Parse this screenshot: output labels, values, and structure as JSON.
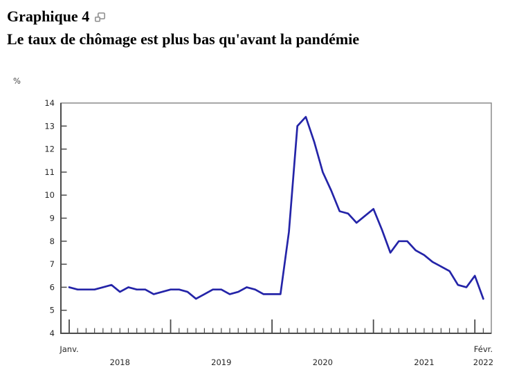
{
  "header": {
    "chart_label": "Graphique 4",
    "title": "Le taux de chômage est plus bas qu'avant la pandémie",
    "popup_icon": "open-popup-icon"
  },
  "chart_data": {
    "type": "line",
    "title": "Le taux de chômage est plus bas qu'avant la pandémie",
    "unit": "%",
    "ylim": [
      4,
      14
    ],
    "yticks": [
      4,
      5,
      6,
      7,
      8,
      9,
      10,
      11,
      12,
      13,
      14
    ],
    "x_first_month_label": "Janv.",
    "x_last_month_label": "Févr.",
    "x_year_labels": [
      "2018",
      "2019",
      "2020",
      "2021",
      "2022"
    ],
    "grid": false,
    "legend_position": "none",
    "line_color": "#2424a8",
    "frame_color": "#8a8a8a",
    "axis_color": "#4a4a4a",
    "tick_label_color": "#262626",
    "series": [
      {
        "name": "Taux de chômage",
        "values": [
          6.0,
          5.9,
          5.9,
          5.9,
          6.0,
          6.1,
          5.8,
          6.0,
          5.9,
          5.9,
          5.7,
          5.8,
          5.9,
          5.9,
          5.8,
          5.5,
          5.7,
          5.9,
          5.9,
          5.7,
          5.8,
          6.0,
          5.9,
          5.7,
          5.7,
          5.7,
          8.4,
          13.0,
          13.4,
          12.3,
          11.0,
          10.2,
          9.3,
          9.2,
          8.8,
          9.1,
          9.4,
          8.5,
          7.5,
          8.0,
          8.0,
          7.6,
          7.4,
          7.1,
          6.9,
          6.7,
          6.1,
          6.0,
          6.5,
          5.5
        ]
      }
    ]
  }
}
